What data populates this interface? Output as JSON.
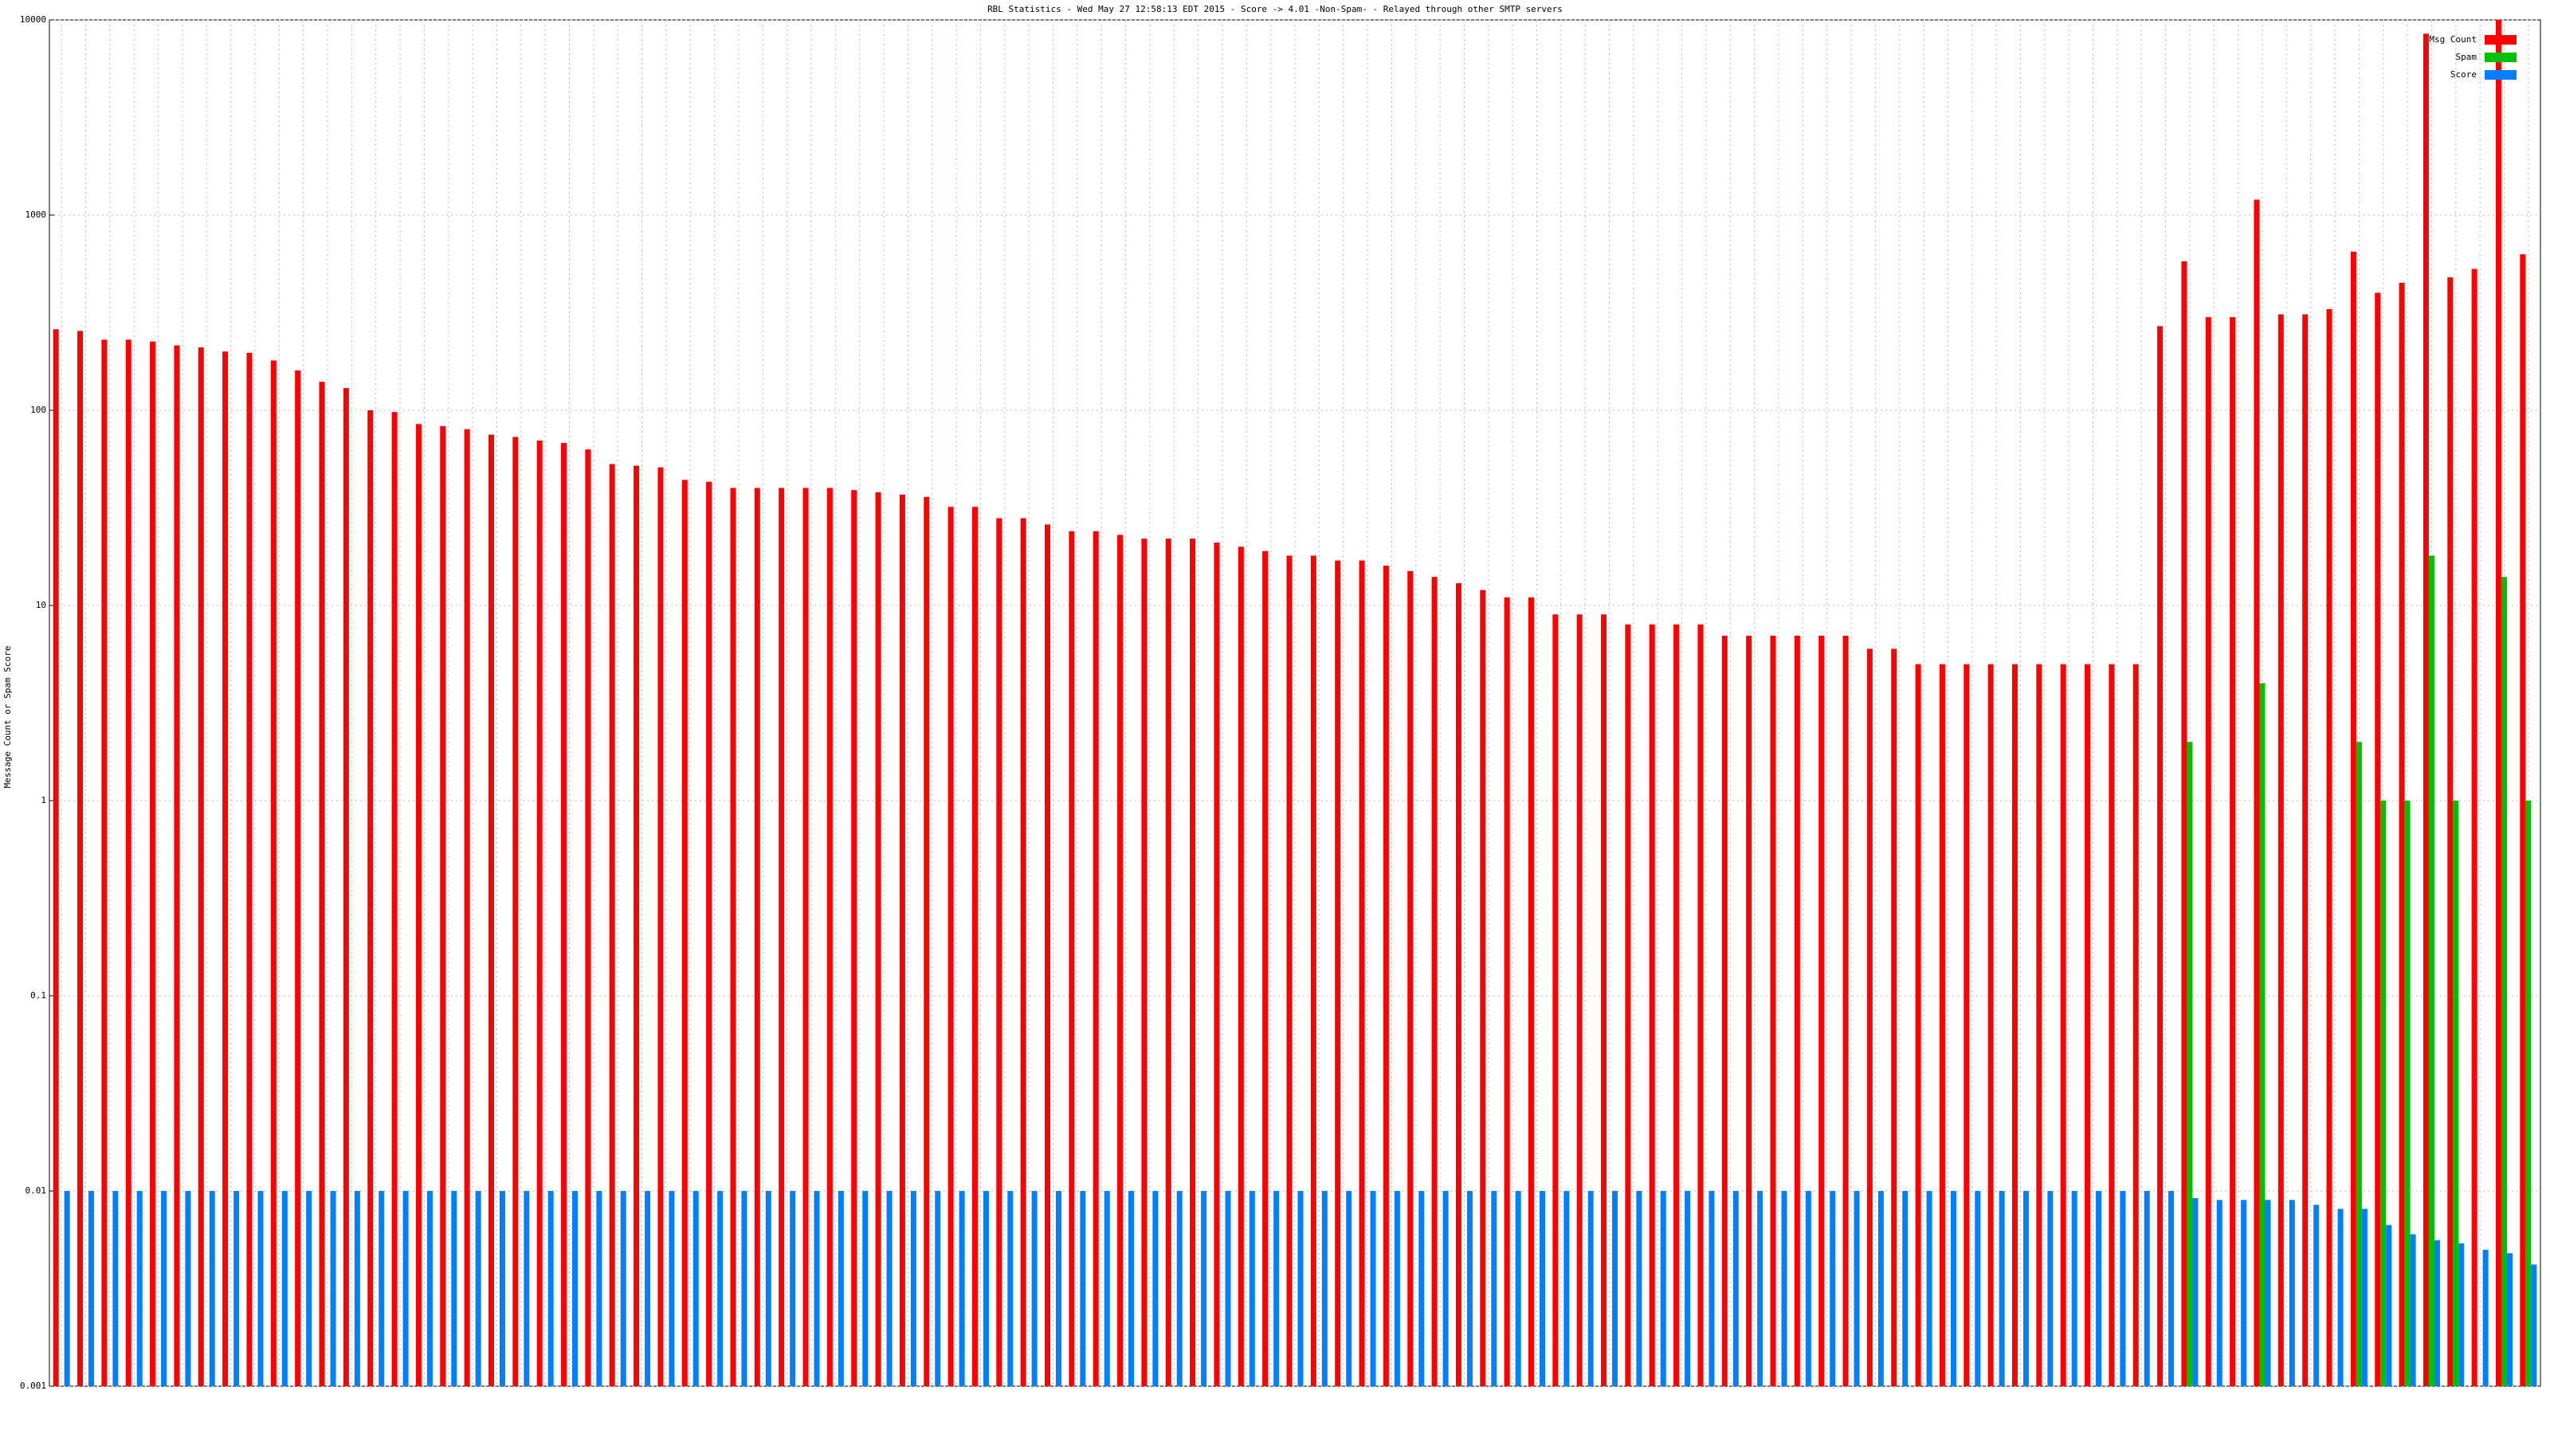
{
  "chart_data": {
    "type": "bar",
    "title": "RBL Statistics - Wed May 27 12:58:13 EDT 2015 - Score -> 4.01 -Non-Spam- - Relayed through other SMTP servers",
    "y_label": "Message Count or Spam Score",
    "log_scale": true,
    "grid": true,
    "legend": "top-right",
    "categories": [
      null,
      null,
      null,
      null,
      null,
      null,
      null,
      null,
      null,
      null,
      null,
      null,
      null,
      null,
      null,
      null,
      null,
      null,
      null,
      null,
      null,
      null,
      null,
      null,
      null,
      null,
      null,
      null,
      null,
      null,
      null,
      null,
      null,
      null,
      null,
      null,
      null,
      null,
      null,
      null,
      null,
      null,
      null,
      null,
      null,
      null,
      null,
      null,
      null,
      null,
      null,
      null,
      null,
      null,
      null,
      null,
      null,
      null,
      null,
      null,
      null,
      null,
      null,
      null,
      null,
      null,
      null,
      null,
      null,
      null,
      null,
      null,
      null,
      null,
      null,
      null,
      null,
      null,
      null,
      null,
      null,
      null,
      null,
      null,
      null,
      null,
      null,
      null,
      null,
      null,
      null,
      null,
      null,
      null,
      null,
      null,
      null,
      null,
      null,
      null,
      null,
      null,
      null
    ],
    "series": [
      {
        "name": "Msg Count",
        "color": "#ff0000",
        "values": [
          260,
          255,
          230,
          230,
          225,
          215,
          210,
          200,
          197,
          180,
          160,
          140,
          130,
          100,
          98,
          85,
          83,
          80,
          75,
          73,
          70,
          68,
          63,
          53,
          52,
          51,
          44,
          43,
          40,
          40,
          40,
          40,
          40,
          39,
          38,
          37,
          36,
          32,
          32,
          28,
          28,
          26,
          24,
          24,
          23,
          22,
          22,
          22,
          21,
          20,
          19,
          18,
          18,
          17,
          17,
          16,
          15,
          14,
          13,
          12,
          11,
          11,
          9,
          9,
          9,
          8,
          8,
          8,
          8,
          7,
          7,
          7,
          7,
          7,
          7,
          6,
          6,
          5,
          5,
          5,
          5,
          5,
          5,
          5,
          5,
          5,
          5,
          270,
          580,
          300,
          300,
          1200,
          310,
          310,
          330,
          650,
          400,
          450,
          8500,
          480,
          530,
          10000,
          630
        ]
      },
      {
        "name": "Spam",
        "color": "#00c000",
        "values": [
          null,
          null,
          null,
          null,
          null,
          null,
          null,
          null,
          null,
          null,
          null,
          null,
          null,
          null,
          null,
          null,
          null,
          null,
          null,
          null,
          null,
          null,
          null,
          null,
          null,
          null,
          null,
          null,
          null,
          null,
          null,
          null,
          null,
          null,
          null,
          null,
          null,
          null,
          null,
          null,
          null,
          null,
          null,
          null,
          null,
          null,
          null,
          null,
          null,
          null,
          null,
          null,
          null,
          null,
          null,
          null,
          null,
          null,
          null,
          null,
          null,
          null,
          null,
          null,
          null,
          null,
          null,
          null,
          null,
          null,
          null,
          null,
          null,
          null,
          null,
          null,
          null,
          null,
          null,
          null,
          null,
          null,
          null,
          null,
          null,
          null,
          null,
          null,
          2,
          null,
          null,
          4,
          null,
          null,
          null,
          2,
          1,
          1,
          18,
          1,
          null,
          14,
          1
        ]
      },
      {
        "name": "Score",
        "color": "#0080ff",
        "values": [
          0.01,
          0.01,
          0.01,
          0.01,
          0.01,
          0.01,
          0.01,
          0.01,
          0.01,
          0.01,
          0.01,
          0.01,
          0.01,
          0.01,
          0.01,
          0.01,
          0.01,
          0.01,
          0.01,
          0.01,
          0.01,
          0.01,
          0.01,
          0.01,
          0.01,
          0.01,
          0.01,
          0.01,
          0.01,
          0.01,
          0.01,
          0.01,
          0.01,
          0.01,
          0.01,
          0.01,
          0.01,
          0.01,
          0.01,
          0.01,
          0.01,
          0.01,
          0.01,
          0.01,
          0.01,
          0.01,
          0.01,
          0.01,
          0.01,
          0.01,
          0.01,
          0.01,
          0.01,
          0.01,
          0.01,
          0.01,
          0.01,
          0.01,
          0.01,
          0.01,
          0.01,
          0.01,
          0.01,
          0.01,
          0.01,
          0.01,
          0.01,
          0.01,
          0.01,
          0.01,
          0.01,
          0.01,
          0.01,
          0.01,
          0.01,
          0.01,
          0.01,
          0.01,
          0.01,
          0.01,
          0.01,
          0.01,
          0.01,
          0.01,
          0.01,
          0.01,
          0.01,
          0.01,
          0.0092,
          0.009,
          0.009,
          0.009,
          0.009,
          0.0085,
          0.0081,
          0.0081,
          0.0067,
          0.006,
          0.0056,
          0.0054,
          0.005,
          0.0048,
          0.0042
        ]
      }
    ],
    "ylim": [
      0.001,
      10000
    ],
    "yticks": [
      0.001,
      0.01,
      0.1,
      1,
      10,
      100,
      1000,
      10000
    ]
  }
}
